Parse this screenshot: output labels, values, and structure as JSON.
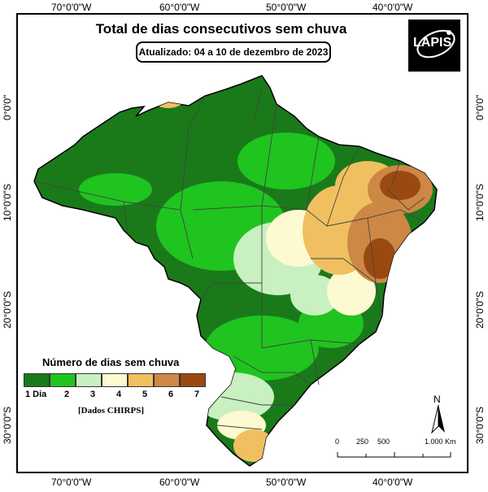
{
  "map": {
    "title": "Total de dias consecutivos sem chuva",
    "updated": "Atualizado: 04 a 10 de dezembro de 2023",
    "logo_text": "LAPIS",
    "longitude_labels": [
      "70°0'0\"W",
      "60°0'0\"W",
      "50°0'0\"W",
      "40°0'0\"W"
    ],
    "latitude_labels": [
      "0°0'0\"",
      "10°0'0\"S",
      "20°0'0\"S",
      "30°0'0\"S"
    ],
    "legend": {
      "title": "Número de dias sem chuva",
      "classes": [
        {
          "label": "1 Dia",
          "color": "#1a7a1a"
        },
        {
          "label": "2",
          "color": "#1fc41f"
        },
        {
          "label": "3",
          "color": "#c8f0c0"
        },
        {
          "label": "4",
          "color": "#fdf9d0"
        },
        {
          "label": "5",
          "color": "#f0c060"
        },
        {
          "label": "6",
          "color": "#cc8844"
        },
        {
          "label": "7",
          "color": "#9a4a10"
        }
      ],
      "source": "[Dados CHIRPS]"
    },
    "north_label": "N",
    "scale": {
      "labels": [
        "0",
        "250",
        "500",
        "1.000 Km"
      ]
    }
  }
}
